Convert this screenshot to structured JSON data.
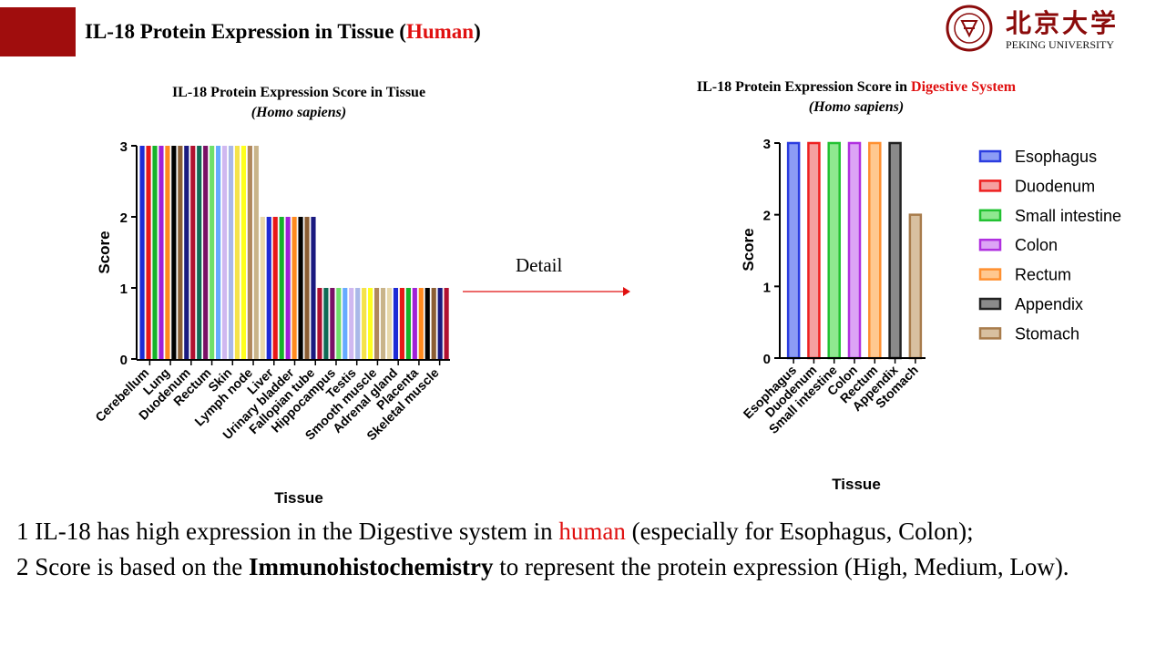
{
  "slide": {
    "title_prefix": "IL-18 Protein Expression in Tissue (",
    "title_highlight": "Human",
    "title_suffix": ")"
  },
  "logo": {
    "chinese_name": "北京大学",
    "english_name": "PEKING UNIVERSITY",
    "seal_text": "PEKING UNIVERSITY 1898",
    "color": "#8b0b0b"
  },
  "detail_label": "Detail",
  "arrow_color": "#e01010",
  "chart_data": [
    {
      "type": "bar",
      "title_line1": "IL-18 Protein Expression Score in Tissue",
      "title_line2": "(Homo sapiens)",
      "xlabel": "Tissue",
      "ylabel": "Score",
      "ylim": [
        0,
        3
      ],
      "yticks": [
        0,
        1,
        2,
        3
      ],
      "tick_labels": [
        "Cerebellum",
        "Lung",
        "Duodenum",
        "Rectum",
        "Skin",
        "Lymph node",
        "Liver",
        "Urinary bladder",
        "Fallopian tube",
        "Hippocampus",
        "Testis",
        "Smooth muscle",
        "Adrenal gland",
        "Placenta",
        "Skeletal muscle"
      ],
      "bar_count": 49,
      "values": [
        3,
        3,
        3,
        3,
        3,
        3,
        3,
        3,
        3,
        3,
        3,
        3,
        3,
        3,
        3,
        3,
        3,
        3,
        3,
        2,
        2,
        2,
        2,
        2,
        2,
        2,
        2,
        2,
        1,
        1,
        1,
        1,
        1,
        1,
        1,
        1,
        1,
        1,
        1,
        1,
        1,
        1,
        1,
        1,
        1,
        1,
        1,
        1,
        1
      ],
      "colors": [
        "#1e2bd6",
        "#e81818",
        "#16b32a",
        "#a020d8",
        "#ff8a1e",
        "#000000",
        "#8b5e34",
        "#1a1a80",
        "#b01030",
        "#0f6b55",
        "#7a1066",
        "#6fe06a",
        "#66aaff",
        "#d0b8f0",
        "#aab8e8",
        "#f5e34a",
        "#ffff1e",
        "#b0885e",
        "#c9b48a",
        "#e8d8aa",
        "#1e2bd6",
        "#e81818",
        "#16b32a",
        "#a020d8",
        "#ff8a1e",
        "#000000",
        "#8b5e34",
        "#1a1a80",
        "#b01030",
        "#0f6b55",
        "#7a1066",
        "#6fe06a",
        "#66aaff",
        "#d0b8f0",
        "#aab8e8",
        "#f5e34a",
        "#ffff1e",
        "#b0885e",
        "#c9b48a",
        "#e8d8aa",
        "#1e2bd6",
        "#e81818",
        "#16b32a",
        "#a020d8",
        "#ff8a1e",
        "#000000",
        "#8b5e34",
        "#1a1a80",
        "#b01030"
      ]
    },
    {
      "type": "bar",
      "title_prefix": "IL-18 Protein Expression Score in ",
      "title_highlight": "Digestive System",
      "title_line2": "(Homo sapiens)",
      "xlabel": "Tissue",
      "ylabel": "Score",
      "ylim": [
        0,
        3
      ],
      "yticks": [
        0,
        1,
        2,
        3
      ],
      "categories": [
        "Esophagus",
        "Duodenum",
        "Small intestine",
        "Colon",
        "Rectum",
        "Appendix",
        "Stomach"
      ],
      "values": [
        3,
        3,
        3,
        3,
        3,
        3,
        2
      ],
      "colors": [
        "#2b3de0",
        "#ee2020",
        "#22c232",
        "#b030e0",
        "#ff9030",
        "#222222",
        "#a87c4c"
      ],
      "fill_colors": [
        "#8c9cf5",
        "#f5a0a0",
        "#8fe890",
        "#dca4f5",
        "#ffc890",
        "#8a8a8a",
        "#d8c0a0"
      ],
      "legend_position": "right"
    }
  ],
  "bullets": {
    "line1_prefix": "1 IL-18 has high expression in the Digestive system in ",
    "line1_highlight": "human",
    "line1_suffix": " (especially for Esophagus, Colon);",
    "line2_prefix": "2 Score is based on the ",
    "line2_bold": "Immunohistochemistry",
    "line2_suffix": " to represent the protein expression (High, Medium, Low)."
  }
}
